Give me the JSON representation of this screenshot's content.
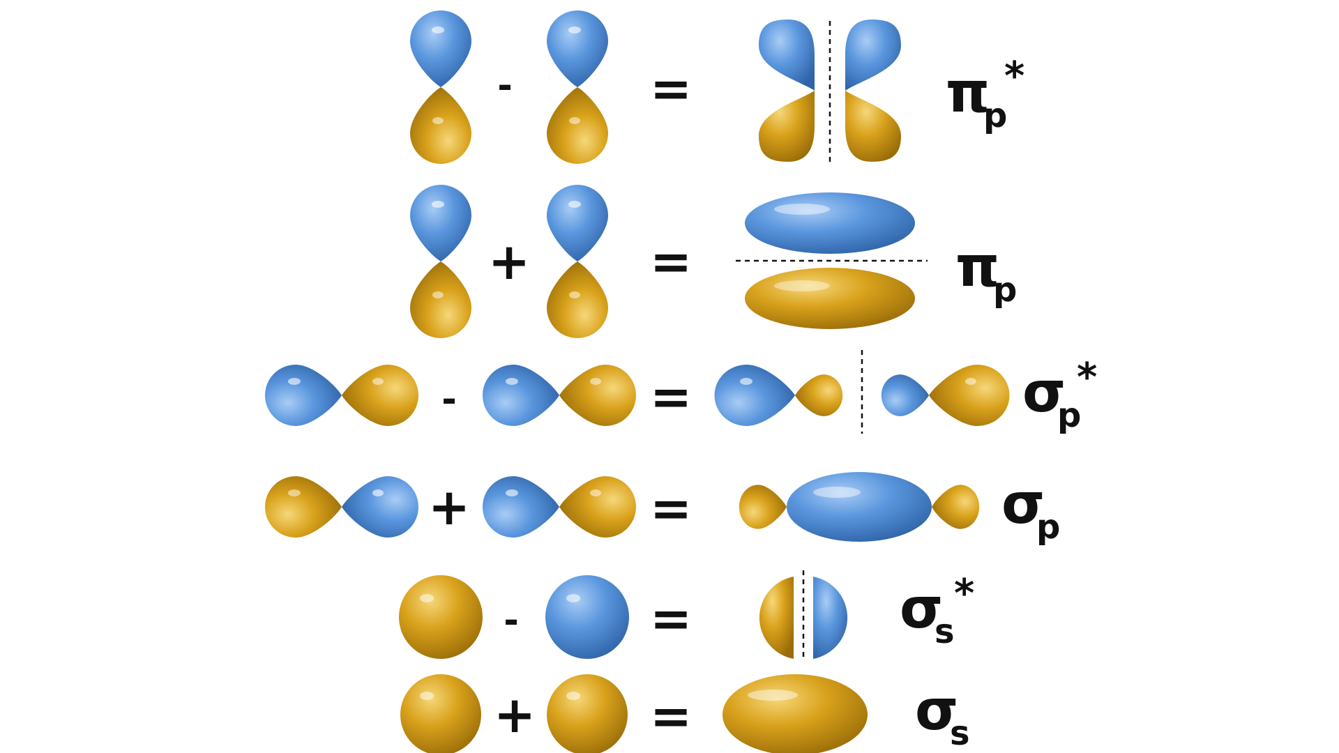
{
  "colors": {
    "positive_lobe": "#5B97DE",
    "negative_lobe": "#D9A21C",
    "text": "#111111"
  },
  "rows": [
    {
      "id": "pi-p-star",
      "operator": "-",
      "equals": "=",
      "label": {
        "main": "π",
        "sub": "p",
        "sup": "*"
      }
    },
    {
      "id": "pi-p",
      "operator": "+",
      "equals": "=",
      "label": {
        "main": "π",
        "sub": "p",
        "sup": ""
      }
    },
    {
      "id": "sigma-p-star",
      "operator": "-",
      "equals": "=",
      "label": {
        "main": "σ",
        "sub": "p",
        "sup": "*"
      }
    },
    {
      "id": "sigma-p",
      "operator": "+",
      "equals": "=",
      "label": {
        "main": "σ",
        "sub": "p",
        "sup": ""
      }
    },
    {
      "id": "sigma-s-star",
      "operator": "-",
      "equals": "=",
      "label": {
        "main": "σ",
        "sub": "s",
        "sup": "*"
      }
    },
    {
      "id": "sigma-s",
      "operator": "+",
      "equals": "=",
      "label": {
        "main": "σ",
        "sub": "s",
        "sup": ""
      }
    }
  ]
}
